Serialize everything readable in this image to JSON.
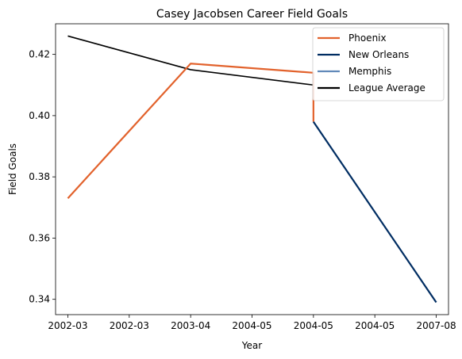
{
  "chart_data": {
    "type": "line",
    "title": "Casey Jacobsen Career Field Goals",
    "xlabel": "Year",
    "ylabel": "Field Goals",
    "x_tick_labels": [
      "2002-03",
      "2002-03",
      "2003-04",
      "2004-05",
      "2004-05",
      "2004-05",
      "2007-08"
    ],
    "x_range": [
      -0.2,
      6.2
    ],
    "ylim": [
      0.335,
      0.43
    ],
    "y_ticks": [
      0.34,
      0.36,
      0.38,
      0.4,
      0.42
    ],
    "y_tick_labels": [
      "0.34",
      "0.36",
      "0.38",
      "0.40",
      "0.42"
    ],
    "grid": false,
    "legend_placement": "top-right",
    "series": [
      {
        "name": "Phoenix",
        "color": "#e2622c",
        "x": [
          0,
          2,
          4,
          4
        ],
        "y": [
          0.373,
          0.417,
          0.414,
          0.398
        ]
      },
      {
        "name": "New Orleans",
        "color": "#002d62",
        "x": [
          4,
          6
        ],
        "y": [
          0.398,
          0.339
        ]
      },
      {
        "name": "Memphis",
        "color": "#6189b9",
        "x": [],
        "y": []
      },
      {
        "name": "League Average",
        "color": "#000000",
        "x": [
          0,
          2,
          4
        ],
        "y": [
          0.426,
          0.415,
          0.41
        ]
      }
    ]
  }
}
